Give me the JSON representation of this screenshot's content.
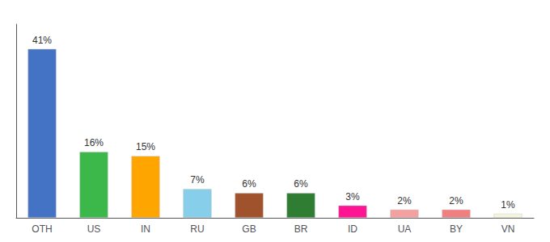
{
  "chart_data": {
    "type": "bar",
    "categories": [
      "OTH",
      "US",
      "IN",
      "RU",
      "GB",
      "BR",
      "ID",
      "UA",
      "BY",
      "VN"
    ],
    "values": [
      41,
      16,
      15,
      7,
      6,
      6,
      3,
      2,
      2,
      1
    ],
    "value_labels": [
      "41%",
      "16%",
      "15%",
      "7%",
      "6%",
      "6%",
      "3%",
      "2%",
      "2%",
      "1%"
    ],
    "colors": [
      "#4472C4",
      "#3CB84A",
      "#FFA500",
      "#87CEEB",
      "#A0522D",
      "#2E7D32",
      "#FF1493",
      "#F4A0A0",
      "#F08080",
      "#F5F5DC"
    ],
    "ylim": [
      0,
      47
    ],
    "data_labels": true,
    "tick_labels": "x",
    "grid": false
  }
}
